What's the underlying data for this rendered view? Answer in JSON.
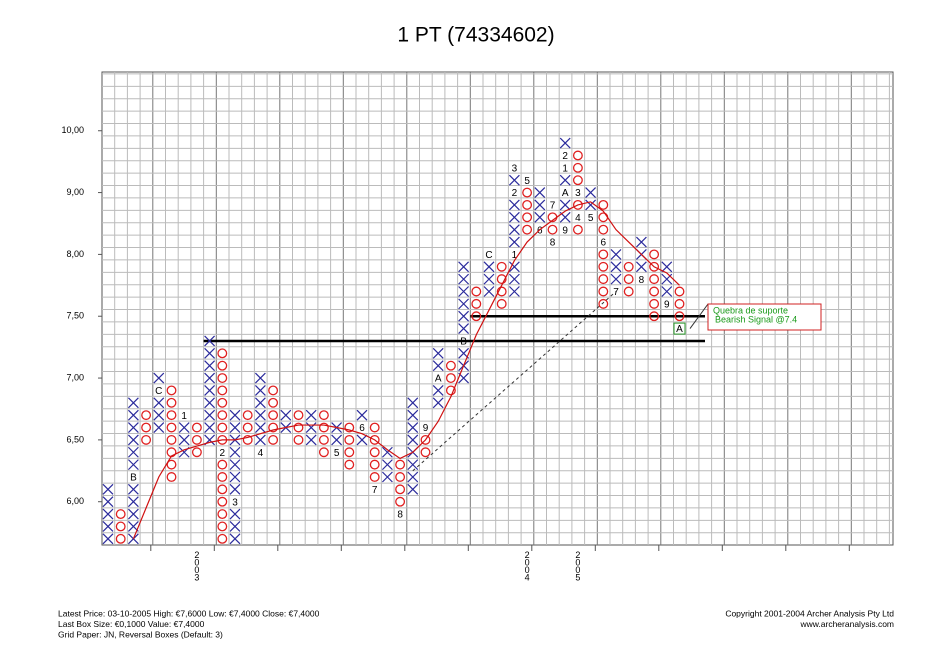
{
  "chart_data": {
    "type": "point-and-figure",
    "title": "1 PT (74334602)",
    "ylim": [
      5.65,
      10.95
    ],
    "yticks": [
      {
        "value": 6,
        "label": "6,00"
      },
      {
        "value": 6.5,
        "label": "6,50"
      },
      {
        "value": 7,
        "label": "7,00"
      },
      {
        "value": 7.5,
        "label": "7,50"
      },
      {
        "value": 8,
        "label": "8,00"
      },
      {
        "value": 9,
        "label": "9,00"
      },
      {
        "value": 10,
        "label": "10,00"
      }
    ],
    "grid": true,
    "x_color": "#2b2b9c",
    "o_color": "#e02020",
    "columns": [
      {
        "type": "X",
        "low": 5.7,
        "high": 6.1
      },
      {
        "type": "O",
        "low": 5.7,
        "high": 5.9
      },
      {
        "type": "X",
        "low": 5.7,
        "high": 6.8,
        "marks": [
          {
            "value": 6.2,
            "label": "B"
          }
        ]
      },
      {
        "type": "O",
        "low": 6.5,
        "high": 6.7
      },
      {
        "type": "X",
        "low": 6.6,
        "high": 7.0,
        "marks": [
          {
            "value": 6.9,
            "label": "C"
          }
        ]
      },
      {
        "type": "O",
        "low": 6.2,
        "high": 6.9
      },
      {
        "type": "X",
        "low": 6.4,
        "high": 6.7,
        "marks": [
          {
            "value": 6.7,
            "label": "1"
          }
        ]
      },
      {
        "type": "O",
        "low": 6.4,
        "high": 6.6
      },
      {
        "type": "X",
        "low": 6.5,
        "high": 7.3
      },
      {
        "type": "O",
        "low": 5.7,
        "high": 7.2,
        "marks": [
          {
            "value": 6.4,
            "label": "2"
          }
        ]
      },
      {
        "type": "X",
        "low": 5.7,
        "high": 6.7,
        "marks": [
          {
            "value": 6.0,
            "label": "3"
          }
        ]
      },
      {
        "type": "O",
        "low": 6.5,
        "high": 6.7
      },
      {
        "type": "X",
        "low": 6.4,
        "high": 7.0,
        "marks": [
          {
            "value": 6.4,
            "label": "4"
          }
        ]
      },
      {
        "type": "O",
        "low": 6.5,
        "high": 6.9
      },
      {
        "type": "X",
        "low": 6.6,
        "high": 6.7
      },
      {
        "type": "O",
        "low": 6.5,
        "high": 6.7
      },
      {
        "type": "X",
        "low": 6.5,
        "high": 6.7
      },
      {
        "type": "O",
        "low": 6.4,
        "high": 6.7
      },
      {
        "type": "X",
        "low": 6.4,
        "high": 6.6,
        "marks": [
          {
            "value": 6.4,
            "label": "5"
          }
        ]
      },
      {
        "type": "O",
        "low": 6.3,
        "high": 6.6
      },
      {
        "type": "X",
        "low": 6.5,
        "high": 6.7,
        "marks": [
          {
            "value": 6.6,
            "label": "6"
          }
        ]
      },
      {
        "type": "O",
        "low": 6.1,
        "high": 6.6,
        "marks": [
          {
            "value": 6.1,
            "label": "7"
          }
        ]
      },
      {
        "type": "X",
        "low": 6.2,
        "high": 6.4
      },
      {
        "type": "O",
        "low": 5.9,
        "high": 6.3,
        "marks": [
          {
            "value": 5.9,
            "label": "8"
          }
        ]
      },
      {
        "type": "X",
        "low": 6.1,
        "high": 6.8
      },
      {
        "type": "O",
        "low": 6.4,
        "high": 6.6,
        "marks": [
          {
            "value": 6.6,
            "label": "9"
          }
        ]
      },
      {
        "type": "X",
        "low": 6.8,
        "high": 7.2,
        "marks": [
          {
            "value": 7.0,
            "label": "A"
          }
        ]
      },
      {
        "type": "O",
        "low": 6.9,
        "high": 7.1
      },
      {
        "type": "X",
        "low": 7.0,
        "high": 7.9,
        "marks": [
          {
            "value": 7.3,
            "label": "B"
          }
        ]
      },
      {
        "type": "O",
        "low": 7.5,
        "high": 7.7
      },
      {
        "type": "X",
        "low": 7.7,
        "high": 8.0,
        "marks": [
          {
            "value": 8.0,
            "label": "C"
          }
        ]
      },
      {
        "type": "O",
        "low": 7.6,
        "high": 7.9
      },
      {
        "type": "X",
        "low": 7.7,
        "high": 9.4,
        "marks": [
          {
            "value": 8.0,
            "label": "1"
          },
          {
            "value": 9.0,
            "label": "2"
          },
          {
            "value": 9.4,
            "label": "3"
          }
        ]
      },
      {
        "type": "O",
        "low": 8.4,
        "high": 9.2,
        "marks": [
          {
            "value": 9.2,
            "label": "5"
          }
        ]
      },
      {
        "type": "X",
        "low": 8.4,
        "high": 9.0,
        "marks": [
          {
            "value": 8.4,
            "label": "6"
          }
        ]
      },
      {
        "type": "O",
        "low": 8.2,
        "high": 8.8,
        "marks": [
          {
            "value": 8.8,
            "label": "7"
          },
          {
            "value": 8.2,
            "label": "8"
          }
        ]
      },
      {
        "type": "X",
        "low": 8.4,
        "high": 9.8,
        "marks": [
          {
            "value": 8.4,
            "label": "9"
          },
          {
            "value": 9.0,
            "label": "A"
          },
          {
            "value": 9.4,
            "label": "1"
          },
          {
            "value": 9.6,
            "label": "2"
          }
        ]
      },
      {
        "type": "O",
        "low": 8.4,
        "high": 9.6,
        "marks": [
          {
            "value": 9.0,
            "label": "3"
          },
          {
            "value": 8.6,
            "label": "4"
          }
        ]
      },
      {
        "type": "X",
        "low": 8.6,
        "high": 9.0,
        "marks": [
          {
            "value": 8.6,
            "label": "5"
          }
        ]
      },
      {
        "type": "O",
        "low": 7.6,
        "high": 8.8,
        "marks": [
          {
            "value": 8.2,
            "label": "6"
          }
        ]
      },
      {
        "type": "X",
        "low": 7.7,
        "high": 8.0,
        "marks": [
          {
            "value": 7.7,
            "label": "7"
          }
        ]
      },
      {
        "type": "O",
        "low": 7.7,
        "high": 7.9
      },
      {
        "type": "X",
        "low": 7.8,
        "high": 8.2,
        "marks": [
          {
            "value": 7.8,
            "label": "8"
          }
        ]
      },
      {
        "type": "O",
        "low": 7.5,
        "high": 8.0
      },
      {
        "type": "X",
        "low": 7.6,
        "high": 7.9,
        "marks": [
          {
            "value": 7.6,
            "label": "9"
          }
        ]
      },
      {
        "type": "O",
        "low": 7.4,
        "high": 7.7,
        "marks": [
          {
            "value": 7.4,
            "label": "A"
          }
        ]
      }
    ],
    "moving_average": {
      "color": "#d01010",
      "values": [
        null,
        null,
        5.7,
        5.95,
        6.2,
        6.37,
        6.42,
        6.45,
        6.48,
        6.5,
        6.5,
        6.52,
        6.55,
        6.58,
        6.6,
        6.62,
        6.62,
        6.62,
        6.6,
        6.58,
        6.55,
        6.5,
        6.42,
        6.35,
        6.4,
        6.5,
        6.65,
        6.85,
        7.1,
        7.35,
        7.55,
        7.75,
        7.95,
        8.2,
        8.4,
        8.55,
        8.7,
        8.8,
        8.85,
        8.7,
        8.4,
        8.2,
        8.0,
        7.9,
        7.85,
        7.75
      ]
    },
    "support_lines": [
      7.3,
      7.5
    ],
    "trend_line": [
      6.25,
      7.7
    ],
    "x_labels": [
      "2003",
      "2004",
      "2005"
    ],
    "annotation": [
      "Quebra de suporte",
      "Bearish Signal @7.4"
    ],
    "footer_left": [
      "Latest Price: 03-10-2005 High: €7,6000 Low: €7,4000 Close: €7,4000",
      "Last Box Size: €0,1000 Value: €7,4000",
      "Grid Paper: JN, Reversal Boxes (Default: 3)"
    ],
    "footer_right": [
      "Copyright 2001-2004 Archer Analysis Pty Ltd",
      "www.archeranalysis.com"
    ]
  }
}
